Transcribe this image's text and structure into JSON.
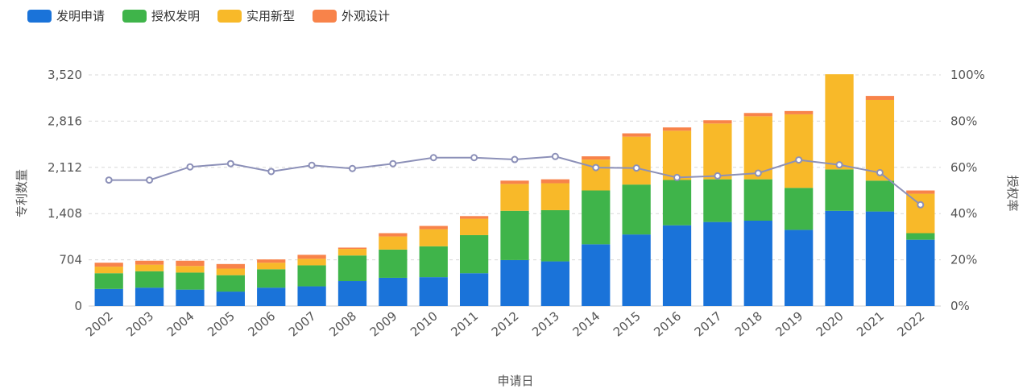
{
  "chart_data": {
    "type": "bar",
    "stacked": true,
    "categories": [
      "2002",
      "2003",
      "2004",
      "2005",
      "2006",
      "2007",
      "2008",
      "2009",
      "2010",
      "2011",
      "2012",
      "2013",
      "2014",
      "2015",
      "2016",
      "2017",
      "2018",
      "2019",
      "2020",
      "2021",
      "2022"
    ],
    "series": [
      {
        "name": "发明申请",
        "color": "#1a73d9",
        "values": [
          260,
          280,
          250,
          220,
          280,
          300,
          380,
          430,
          440,
          500,
          700,
          680,
          940,
          1090,
          1230,
          1280,
          1300,
          1160,
          1450,
          1440,
          1010
        ]
      },
      {
        "name": "授权发明",
        "color": "#3fb44a",
        "values": [
          240,
          250,
          260,
          250,
          280,
          320,
          390,
          430,
          470,
          580,
          750,
          780,
          820,
          760,
          690,
          650,
          630,
          640,
          630,
          470,
          100
        ]
      },
      {
        "name": "实用新型",
        "color": "#f8b929",
        "values": [
          100,
          100,
          100,
          100,
          100,
          100,
          100,
          200,
          260,
          250,
          410,
          410,
          470,
          730,
          750,
          850,
          960,
          1120,
          1450,
          1230,
          600
        ]
      },
      {
        "name": "外观设计",
        "color": "#f8834a",
        "values": [
          60,
          60,
          80,
          70,
          50,
          60,
          20,
          50,
          50,
          40,
          50,
          60,
          50,
          50,
          50,
          50,
          50,
          50,
          0,
          60,
          50
        ]
      }
    ],
    "line": {
      "name": "授权率",
      "color": "#8c90b8",
      "values": [
        54.5,
        54.5,
        60.2,
        61.6,
        58.2,
        60.9,
        59.5,
        61.6,
        64.2,
        64.2,
        63.4,
        64.7,
        59.9,
        59.7,
        55.6,
        56.3,
        57.5,
        63.2,
        61.1,
        57.7,
        43.8
      ]
    },
    "xlabel": "申请日",
    "ylabel": "专利数量",
    "y2label": "授权率",
    "yticks": [
      "0",
      "704",
      "1,408",
      "2,112",
      "2,816",
      "3,520"
    ],
    "ylim": [
      0,
      3520
    ],
    "y2ticks": [
      "0%",
      "20%",
      "40%",
      "60%",
      "80%",
      "100%"
    ],
    "y2lim": [
      0,
      100
    ],
    "grid": true,
    "legend_position": "top-left"
  }
}
